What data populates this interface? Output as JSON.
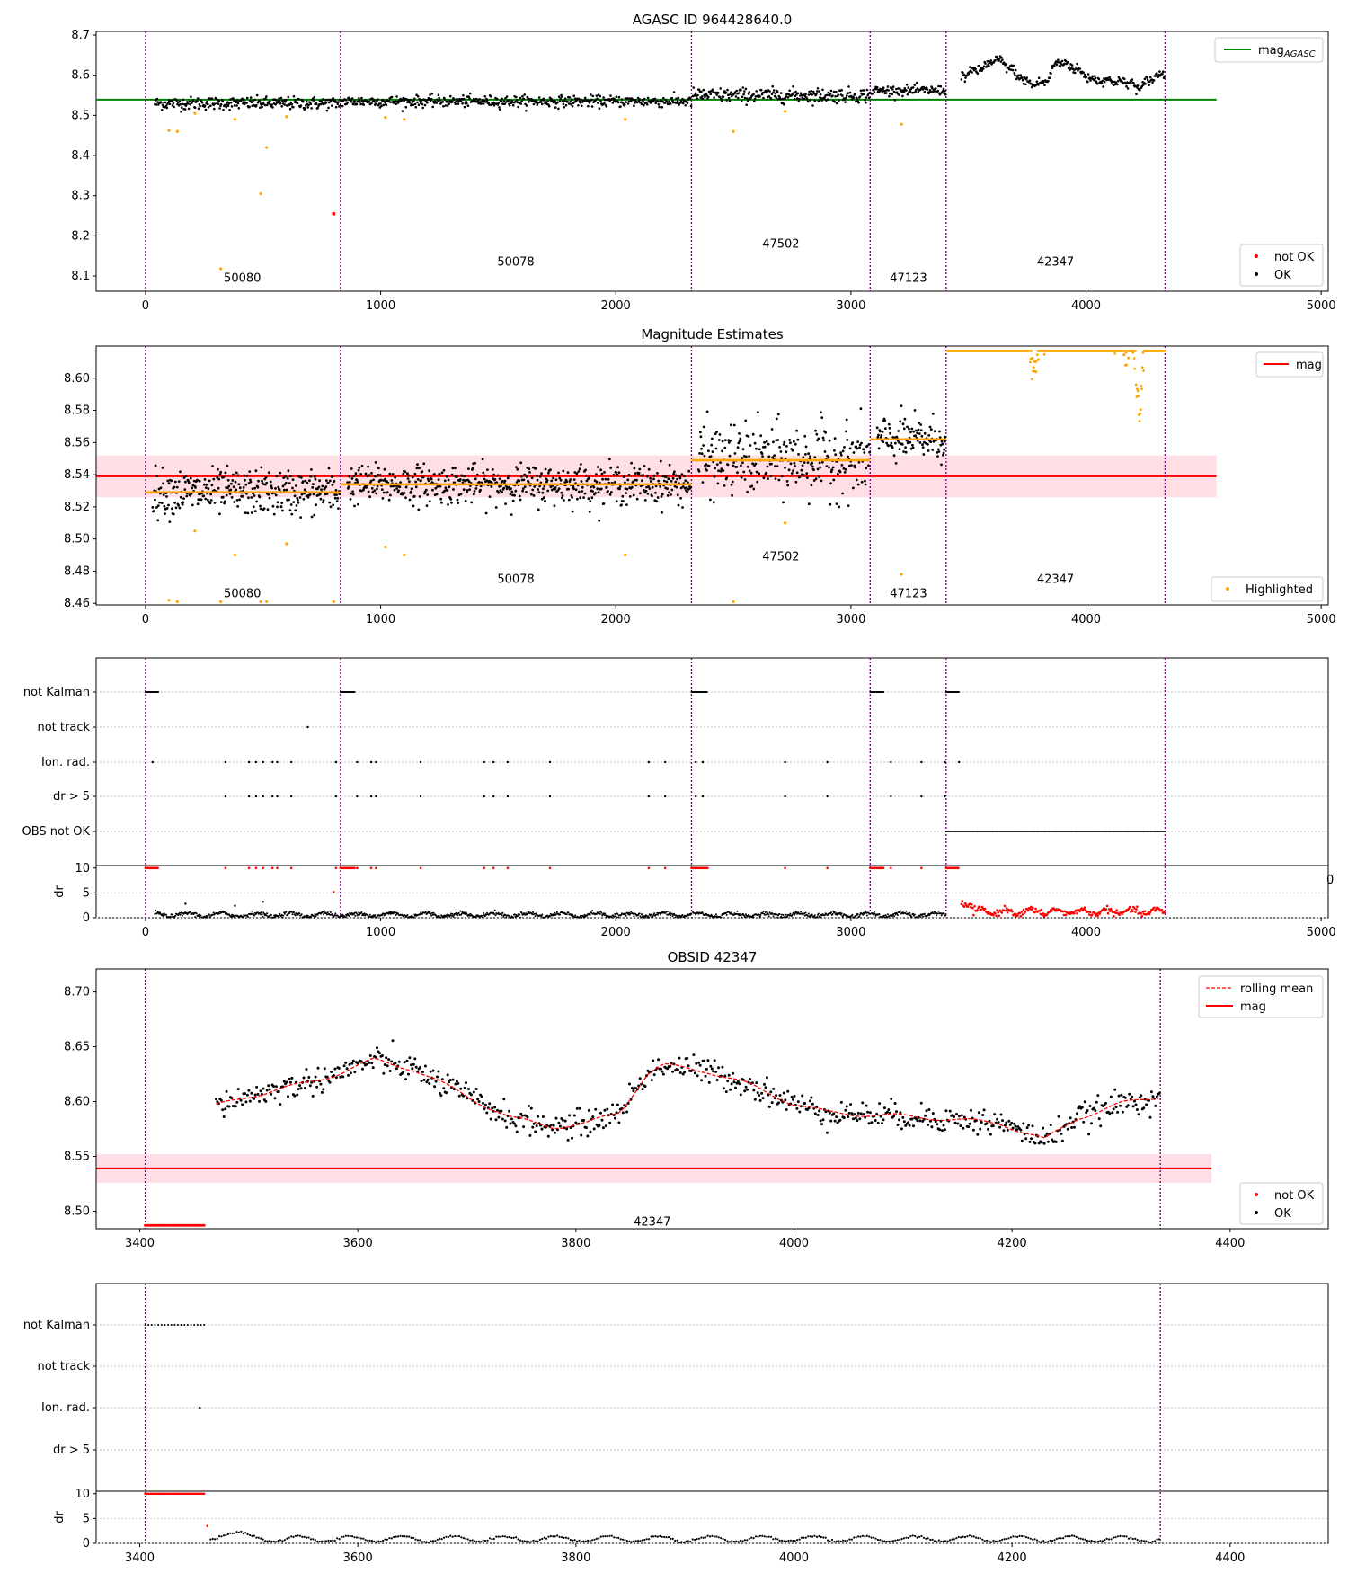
{
  "chart_data": [
    {
      "type": "scatter",
      "title": "AGASC ID 964428640.0",
      "xlim": [
        -210,
        5030
      ],
      "ylim": [
        8.062,
        8.709
      ],
      "xticks": [
        0,
        1000,
        2000,
        3000,
        4000,
        5000
      ],
      "yticks": [
        8.1,
        8.2,
        8.3,
        8.4,
        8.5,
        8.6,
        8.7
      ],
      "ytick_labels": [
        "8.1",
        "8.2",
        "8.3",
        "8.4",
        "8.5",
        "8.6",
        "8.7"
      ],
      "obs_boundaries": [
        0,
        829,
        2322,
        3082,
        3405,
        4336
      ],
      "obs_labels": [
        {
          "text": "50080",
          "x": 412,
          "y": 8.095
        },
        {
          "text": "50078",
          "x": 1575,
          "y": 8.135
        },
        {
          "text": "47502",
          "x": 2702,
          "y": 8.18
        },
        {
          "text": "47123",
          "x": 3245,
          "y": 8.095
        },
        {
          "text": "42347",
          "x": 3870,
          "y": 8.135
        }
      ],
      "agasc_mag_line": {
        "value": 8.539,
        "x_range": [
          -210,
          4555
        ],
        "color": "#008000"
      },
      "segments": [
        {
          "x_range": [
            40,
            829
          ],
          "baseline": 8.53,
          "noise": 0.008
        },
        {
          "x_range": [
            835,
            2322
          ],
          "baseline": 8.535,
          "noise": 0.007
        },
        {
          "x_range": [
            2328,
            3082
          ],
          "baseline": 8.55,
          "noise": 0.009
        },
        {
          "x_range": [
            3088,
            3405
          ],
          "baseline": 8.562,
          "noise": 0.006
        },
        {
          "x_range": [
            3470,
            4336
          ],
          "baseline": "curve",
          "noise": 0.006
        }
      ],
      "outliers": [
        {
          "x": 100,
          "y": 8.462
        },
        {
          "x": 135,
          "y": 8.46
        },
        {
          "x": 210,
          "y": 8.505
        },
        {
          "x": 320,
          "y": 8.118
        },
        {
          "x": 380,
          "y": 8.49
        },
        {
          "x": 490,
          "y": 8.305
        },
        {
          "x": 515,
          "y": 8.42
        },
        {
          "x": 600,
          "y": 8.497
        },
        {
          "x": 800,
          "y": 8.255
        },
        {
          "x": 1020,
          "y": 8.495
        },
        {
          "x": 1100,
          "y": 8.49
        },
        {
          "x": 2040,
          "y": 8.49
        },
        {
          "x": 2500,
          "y": 8.46
        },
        {
          "x": 2720,
          "y": 8.51
        },
        {
          "x": 3215,
          "y": 8.478
        }
      ],
      "legend": [
        {
          "label": "mag",
          "subscript": "AGASC",
          "kind": "line",
          "color": "#008000",
          "position": "upper-right"
        },
        {
          "label": "not OK",
          "kind": "dot",
          "color": "#ff0000",
          "position": "lower-right"
        },
        {
          "label": "OK",
          "kind": "dot",
          "color": "#000000",
          "position": "lower-right"
        }
      ]
    },
    {
      "type": "scatter",
      "title": "Magnitude Estimates",
      "xlim": [
        -210,
        5030
      ],
      "ylim": [
        8.459,
        8.62
      ],
      "xticks": [
        0,
        1000,
        2000,
        3000,
        4000,
        5000
      ],
      "yticks": [
        8.46,
        8.48,
        8.5,
        8.52,
        8.54,
        8.56,
        8.58,
        8.6
      ],
      "ytick_labels": [
        "8.46",
        "8.48",
        "8.50",
        "8.52",
        "8.54",
        "8.56",
        "8.58",
        "8.60"
      ],
      "obs_labels": [
        {
          "text": "50080",
          "x": 412,
          "y": 8.466
        },
        {
          "text": "50078",
          "x": 1575,
          "y": 8.475
        },
        {
          "text": "47502",
          "x": 2702,
          "y": 8.489
        },
        {
          "text": "47123",
          "x": 3245,
          "y": 8.466
        },
        {
          "text": "42347",
          "x": 3870,
          "y": 8.475
        }
      ],
      "mag_line": {
        "value": 8.539,
        "band": [
          8.526,
          8.552
        ],
        "x_range": [
          -210,
          4555
        ],
        "color": "#ff0000"
      },
      "segment_means": [
        {
          "x_range": [
            0,
            829
          ],
          "value": 8.529
        },
        {
          "x_range": [
            829,
            2322
          ],
          "value": 8.534
        },
        {
          "x_range": [
            2322,
            3082
          ],
          "value": 8.549
        },
        {
          "x_range": [
            3082,
            3405
          ],
          "value": 8.562
        }
      ],
      "highlighted_color": "#ffa500",
      "legend": [
        {
          "label": "mag",
          "kind": "line",
          "color": "#ff0000",
          "position": "upper-right"
        },
        {
          "label": "Highlighted",
          "kind": "dot",
          "color": "#ffa500",
          "position": "lower-right"
        }
      ]
    },
    {
      "type": "scatter",
      "title": "",
      "xlim": [
        -210,
        5030
      ],
      "flag_rows": [
        "not Kalman",
        "not track",
        "Ion. rad.",
        "dr > 5",
        "OBS not OK"
      ],
      "flag_spans": [
        {
          "row": "not Kalman",
          "ranges": [
            [
              0,
              55
            ],
            [
              829,
              890
            ],
            [
              2322,
              2390
            ],
            [
              3082,
              3140
            ],
            [
              3405,
              3460
            ]
          ]
        },
        {
          "row": "not track",
          "points": [
            690
          ]
        },
        {
          "row": "Ion. rad.",
          "points": [
            30,
            340,
            440,
            470,
            500,
            540,
            560,
            620,
            810,
            900,
            960,
            980,
            1170,
            1440,
            1480,
            1540,
            1720,
            2140,
            2210,
            2340,
            2370,
            2720,
            2900,
            3170,
            3300,
            3400,
            3460
          ]
        },
        {
          "row": "dr > 5",
          "points": [
            340,
            440,
            470,
            500,
            540,
            560,
            620,
            810,
            900,
            960,
            980,
            1170,
            1440,
            1480,
            1540,
            1720,
            2140,
            2210,
            2340,
            2370,
            2720,
            2900,
            3170,
            3300,
            3400
          ]
        },
        {
          "row": "OBS not OK",
          "ranges": [
            [
              3405,
              4336
            ]
          ]
        }
      ],
      "dr_axis": {
        "ylim": [
          0,
          10.5
        ],
        "yticks": [
          0,
          5,
          10
        ],
        "ylabel": "dr"
      },
      "xticks": [
        0,
        1000,
        2000,
        3000,
        4000,
        5000
      ],
      "clipped_label": "0"
    },
    {
      "type": "scatter",
      "title": "OBSID 42347",
      "xlim": [
        3360,
        4490
      ],
      "ylim": [
        8.484,
        8.721
      ],
      "xticks": [
        3400,
        3600,
        3800,
        4000,
        4200,
        4400
      ],
      "yticks": [
        8.5,
        8.55,
        8.6,
        8.65,
        8.7
      ],
      "ytick_labels": [
        "8.50",
        "8.55",
        "8.60",
        "8.65",
        "8.70"
      ],
      "obs_boundaries": [
        3405,
        4336
      ],
      "obs_label": {
        "text": "42347",
        "x": 3870,
        "y": 8.49
      },
      "mag_line": {
        "value": 8.539,
        "band": [
          8.526,
          8.552
        ],
        "x_range": [
          3360,
          4383
        ],
        "color": "#ff0000"
      },
      "not_ok_range": {
        "x_range": [
          3405,
          3460
        ],
        "y": 8.487
      },
      "rolling_mean_knots": [
        [
          3470,
          8.596
        ],
        [
          3500,
          8.605
        ],
        [
          3550,
          8.616
        ],
        [
          3580,
          8.625
        ],
        [
          3615,
          8.638
        ],
        [
          3650,
          8.63
        ],
        [
          3700,
          8.605
        ],
        [
          3740,
          8.585
        ],
        [
          3780,
          8.577
        ],
        [
          3810,
          8.58
        ],
        [
          3840,
          8.59
        ],
        [
          3865,
          8.625
        ],
        [
          3880,
          8.633
        ],
        [
          3920,
          8.628
        ],
        [
          3960,
          8.615
        ],
        [
          4000,
          8.598
        ],
        [
          4030,
          8.59
        ],
        [
          4070,
          8.588
        ],
        [
          4130,
          8.585
        ],
        [
          4190,
          8.58
        ],
        [
          4230,
          8.565
        ],
        [
          4260,
          8.585
        ],
        [
          4300,
          8.598
        ],
        [
          4336,
          8.605
        ]
      ],
      "legend": [
        {
          "label": "rolling mean",
          "kind": "dashed-line",
          "color": "#ff0000",
          "position": "upper-right"
        },
        {
          "label": "mag",
          "kind": "line",
          "color": "#ff0000",
          "position": "upper-right"
        },
        {
          "label": "not OK",
          "kind": "dot",
          "color": "#ff0000",
          "position": "lower-right"
        },
        {
          "label": "OK",
          "kind": "dot",
          "color": "#000000",
          "position": "lower-right"
        }
      ]
    },
    {
      "type": "scatter",
      "title": "",
      "xlim": [
        3360,
        4490
      ],
      "flag_rows": [
        "not Kalman",
        "not track",
        "Ion. rad.",
        "dr > 5"
      ],
      "flag_spans": [
        {
          "row": "not Kalman",
          "ranges": [
            [
              3405,
              3460
            ]
          ]
        },
        {
          "row": "Ion. rad.",
          "points": [
            3455
          ]
        }
      ],
      "dr_axis": {
        "ylim": [
          0,
          10.5
        ],
        "yticks": [
          0,
          5,
          10
        ],
        "ylabel": "dr"
      },
      "xticks": [
        3400,
        3600,
        3800,
        4000,
        4200,
        4400
      ]
    }
  ]
}
